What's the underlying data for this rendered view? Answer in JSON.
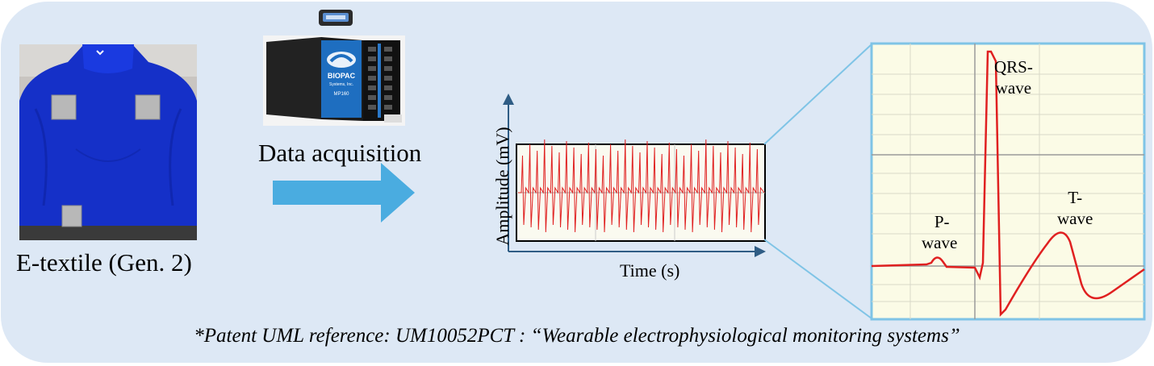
{
  "captions": {
    "photo": "E-textile (Gen. 2)",
    "daq": "Data acquisition",
    "time_axis": "Time (s)",
    "amplitude_axis": "Amplitude  (mV)",
    "patent": "*Patent UML reference: UM10052PCT : “Wearable electrophysiological monitoring systems”"
  },
  "device": {
    "brand": "BIOPAC",
    "subtitle": "Systems, Inc.",
    "model": "MP160"
  },
  "ecg_labels": {
    "qrs_line1": "QRS-",
    "qrs_line2": "wave",
    "p_line1": "P-",
    "p_line2": "wave",
    "t_line1": "T-",
    "t_line2": "wave"
  },
  "colors": {
    "panel": "#dde8f5",
    "arrow": "#4aace0",
    "garment": "#1530c8",
    "ecg_trace": "#e02020",
    "zoom_bg": "#fbfbe6",
    "zoom_lines": "#7fc4e6"
  }
}
